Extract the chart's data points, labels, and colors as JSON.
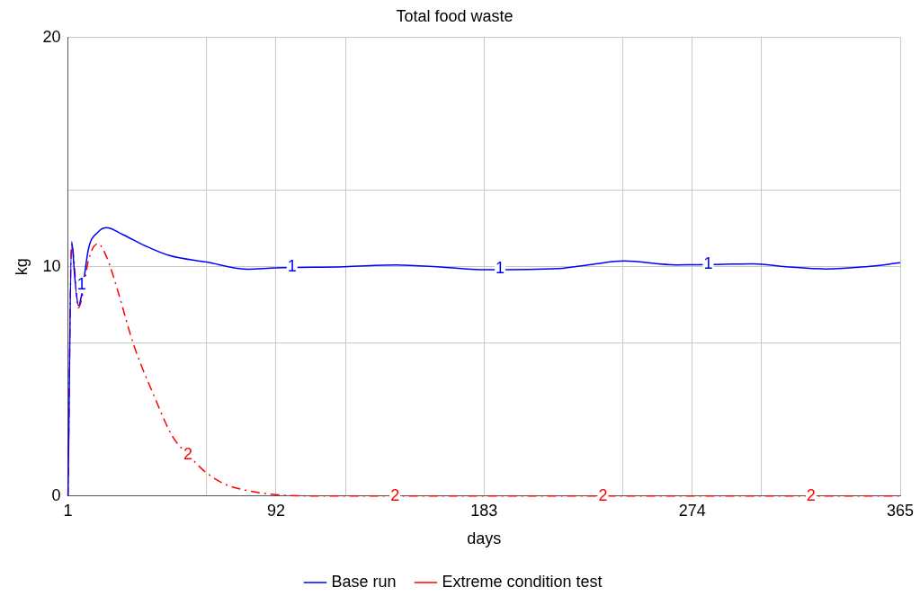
{
  "chart_data": {
    "type": "line",
    "title": "Total food waste",
    "xlabel": "days",
    "ylabel": "kg",
    "xlim": [
      1,
      365
    ],
    "xticks": [
      1,
      {
        "value": 61.67,
        "label": null
      },
      92,
      {
        "value": 122.33,
        "label": null
      },
      183,
      {
        "value": 243.67,
        "label": null
      },
      274,
      {
        "value": 304.33,
        "label": null
      },
      365
    ],
    "ylim": [
      0,
      20
    ],
    "yticks": [
      0,
      {
        "value": 6.667,
        "label": null
      },
      10,
      {
        "value": 13.333,
        "label": null
      },
      20
    ],
    "grid": true,
    "legend": "bottom",
    "marker": "none",
    "series": [
      {
        "name": "Base run",
        "color": "#0000ff",
        "x": [
          1,
          2.6,
          4,
          5.6,
          7,
          10,
          14,
          17.9,
          25,
          35,
          45,
          61.7,
          79.3,
          91.6,
          121.8,
          144.6,
          165,
          183.8,
          215.6,
          230,
          244.2,
          267,
          285,
          300.9,
          315,
          332.8,
          350,
          365
        ],
        "values": [
          0,
          11.1,
          9.5,
          8.3,
          8.8,
          10.8,
          11.5,
          11.7,
          11.4,
          10.9,
          10.5,
          10.2,
          9.89,
          9.95,
          10.0,
          10.08,
          9.98,
          9.87,
          9.92,
          10.1,
          10.25,
          10.08,
          10.1,
          10.13,
          10.0,
          9.9,
          10.0,
          10.17
        ]
      },
      {
        "name": "Extreme condition test",
        "color": "#ff0000",
        "line_style": "dashed",
        "x": [
          1,
          2.6,
          5.6,
          7,
          10,
          14.1,
          18,
          22.9,
          29.7,
          38.5,
          46.7,
          53.5,
          61.7,
          70,
          79.3,
          90,
          101,
          130,
          180,
          250,
          300,
          365
        ],
        "values": [
          0,
          11.0,
          8.2,
          8.6,
          10.3,
          11.0,
          10.4,
          8.9,
          6.6,
          4.4,
          2.6,
          1.8,
          1.0,
          0.5,
          0.24,
          0.08,
          0.01,
          0,
          0,
          0,
          0,
          0
        ]
      }
    ],
    "annotations": [
      {
        "text": "1",
        "x": 7,
        "y": 9.2
      },
      {
        "text": "1",
        "x": 99,
        "y": 10
      },
      {
        "text": "1",
        "x": 190,
        "y": 9.9
      },
      {
        "text": "1",
        "x": 281,
        "y": 10.1
      },
      {
        "text": "2",
        "x": 53.5,
        "y": 1.8
      },
      {
        "text": "2",
        "x": 144,
        "y": 0
      },
      {
        "text": "2",
        "x": 235,
        "y": 0
      },
      {
        "text": "2",
        "x": 326,
        "y": 0
      }
    ]
  }
}
